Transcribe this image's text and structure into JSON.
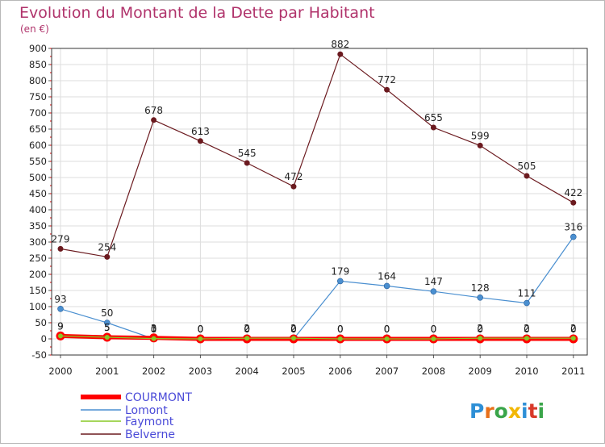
{
  "chart_data": {
    "type": "line",
    "title": "Evolution du Montant de la Dette par Habitant",
    "subtitle": "(en €)",
    "xlabel": "",
    "ylabel": "",
    "ylim": [
      -50,
      900
    ],
    "yticks": [
      -50,
      0,
      50,
      100,
      150,
      200,
      250,
      300,
      350,
      400,
      450,
      500,
      550,
      600,
      650,
      700,
      750,
      800,
      850,
      900
    ],
    "grid": true,
    "legend_position": "bottom-left",
    "x": [
      "2000",
      "2001",
      "2002",
      "2003",
      "2004",
      "2005",
      "2006",
      "2007",
      "2008",
      "2009",
      "2010",
      "2011"
    ],
    "series": [
      {
        "name": "COURMONT",
        "color": "#ff0000",
        "values": [
          9,
          5,
          3,
          0,
          0,
          0,
          0,
          0,
          0,
          0,
          0,
          0
        ]
      },
      {
        "name": "Lomont",
        "color": "#4a8fd0",
        "values": [
          93,
          50,
          0,
          0,
          0,
          0,
          179,
          164,
          147,
          128,
          111,
          316
        ]
      },
      {
        "name": "Faymont",
        "color": "#88c826",
        "values": [
          9,
          5,
          1,
          0,
          2,
          2,
          0,
          0,
          0,
          2,
          2,
          2
        ]
      },
      {
        "name": "Belverne",
        "color": "#6b1a1f",
        "values": [
          279,
          254,
          678,
          613,
          545,
          472,
          882,
          772,
          655,
          599,
          505,
          422
        ]
      }
    ]
  },
  "logo": {
    "text": "Proxiti"
  },
  "colors": {
    "title": "#b0336b",
    "legend_text": "#4a4ad8",
    "plot_border": "#333333",
    "grid": "#dddddd"
  }
}
